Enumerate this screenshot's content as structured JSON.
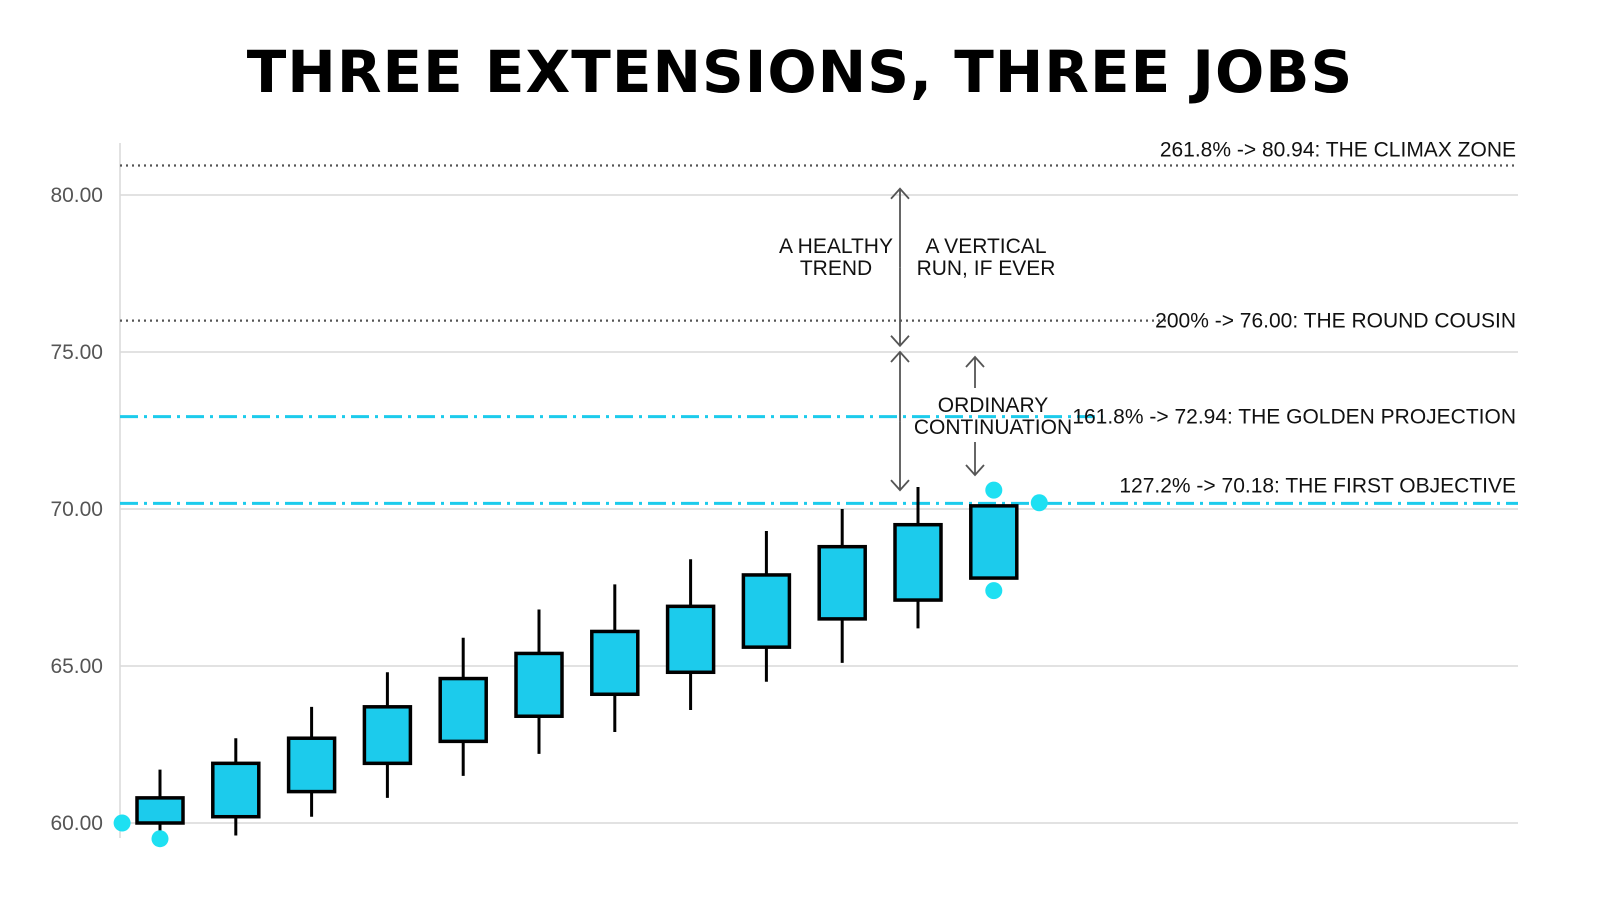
{
  "chart_data": {
    "type": "candlestick",
    "title": "THREE EXTENSIONS, THREE JOBS",
    "ylim": [
      59.2,
      82.2
    ],
    "yticks": [
      "60.00",
      "65.00",
      "70.00",
      "75.00",
      "80.00"
    ],
    "ytick_values": [
      60,
      65,
      70,
      75,
      80
    ],
    "grid": true,
    "colors": {
      "candle_body": "#1ccbec",
      "candle_outline": "#000000",
      "golden_levels": "#1ccbec",
      "dotted_levels": "#555555",
      "gridline": "#d9d9d9",
      "arrow": "#555555",
      "marker": "#1ee0f2"
    },
    "candles": [
      {
        "open": 60.0,
        "close": 60.8,
        "high": 61.7,
        "low": 59.6
      },
      {
        "open": 60.2,
        "close": 61.9,
        "high": 62.7,
        "low": 59.6
      },
      {
        "open": 61.0,
        "close": 62.7,
        "high": 63.7,
        "low": 60.2
      },
      {
        "open": 61.9,
        "close": 63.7,
        "high": 64.8,
        "low": 60.8
      },
      {
        "open": 62.6,
        "close": 64.6,
        "high": 65.9,
        "low": 61.5
      },
      {
        "open": 63.4,
        "close": 65.4,
        "high": 66.8,
        "low": 62.2
      },
      {
        "open": 64.1,
        "close": 66.1,
        "high": 67.6,
        "low": 62.9
      },
      {
        "open": 64.8,
        "close": 66.9,
        "high": 68.4,
        "low": 63.6
      },
      {
        "open": 65.6,
        "close": 67.9,
        "high": 69.3,
        "low": 64.5
      },
      {
        "open": 66.5,
        "close": 68.8,
        "high": 70.0,
        "low": 65.1
      },
      {
        "open": 67.1,
        "close": 69.5,
        "high": 70.7,
        "low": 66.2
      },
      {
        "open": 67.8,
        "close": 70.1,
        "high": 70.1,
        "low": 67.8
      }
    ],
    "levels": [
      {
        "value": 80.94,
        "label": "261.8% -> 80.94: THE CLIMAX ZONE",
        "style": "dotted"
      },
      {
        "value": 76.0,
        "label": "200% -> 76.00: THE ROUND COUSIN",
        "style": "dotted"
      },
      {
        "value": 72.94,
        "label": "161.8% -> 72.94: THE GOLDEN PROJECTION",
        "style": "dashdot"
      },
      {
        "value": 70.18,
        "label": "127.2% -> 70.18: THE FIRST OBJECTIVE",
        "style": "dashdot"
      }
    ],
    "markers": [
      {
        "x_candle": -0.5,
        "value": 60.0
      },
      {
        "x_candle": 0,
        "value": 59.5
      },
      {
        "x_candle": 11,
        "value": 70.6
      },
      {
        "x_candle": 11,
        "value": 67.4
      },
      {
        "x_candle": 11.6,
        "value": 70.2
      }
    ],
    "annotations": {
      "healthy_trend": [
        "A HEALTHY",
        "TREND"
      ],
      "vertical_run": [
        "A VERTICAL",
        "RUN, IF EVER"
      ],
      "ordinary": [
        "ORDINARY",
        "CONTINUATION"
      ]
    }
  }
}
